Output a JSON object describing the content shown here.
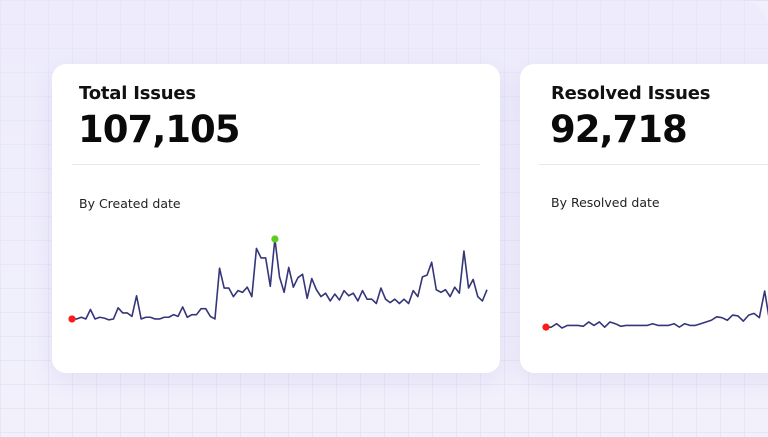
{
  "cards": [
    {
      "title": "Total Issues",
      "value": "107,105",
      "subtitle": "By Created date",
      "sparkline": {
        "line_color": "#353579",
        "start_marker_color": "#ff1a1a",
        "peak_marker_color": "#5ccc1f",
        "values": [
          7,
          7,
          9,
          7,
          18,
          7,
          9,
          8,
          6,
          7,
          20,
          14,
          14,
          10,
          34,
          7,
          9,
          9,
          7,
          7,
          9,
          9,
          12,
          10,
          21,
          9,
          12,
          12,
          19,
          19,
          10,
          7,
          66,
          43,
          43,
          33,
          40,
          38,
          44,
          33,
          89,
          78,
          78,
          45,
          100,
          56,
          38,
          67,
          44,
          55,
          59,
          31,
          54,
          41,
          33,
          37,
          28,
          36,
          29,
          40,
          34,
          37,
          28,
          40,
          30,
          30,
          25,
          43,
          30,
          26,
          30,
          25,
          30,
          25,
          40,
          33,
          56,
          58,
          73,
          41,
          38,
          41,
          33,
          44,
          37,
          86,
          43,
          53,
          33,
          28,
          41
        ]
      }
    },
    {
      "title": "Resolved Issues",
      "value": "92,718",
      "subtitle": "By Resolved date",
      "sparkline": {
        "line_color": "#353579",
        "start_marker_color": "#ff1a1a",
        "values": [
          1,
          1,
          5,
          0,
          3,
          3,
          3,
          2,
          7,
          3,
          7,
          1,
          7,
          5,
          2,
          3,
          3,
          3,
          3,
          3,
          5,
          3,
          3,
          3,
          5,
          1,
          5,
          3,
          3,
          5,
          7,
          9,
          13,
          12,
          9,
          15,
          14,
          8,
          15,
          17,
          12,
          43,
          5
        ]
      }
    }
  ]
}
